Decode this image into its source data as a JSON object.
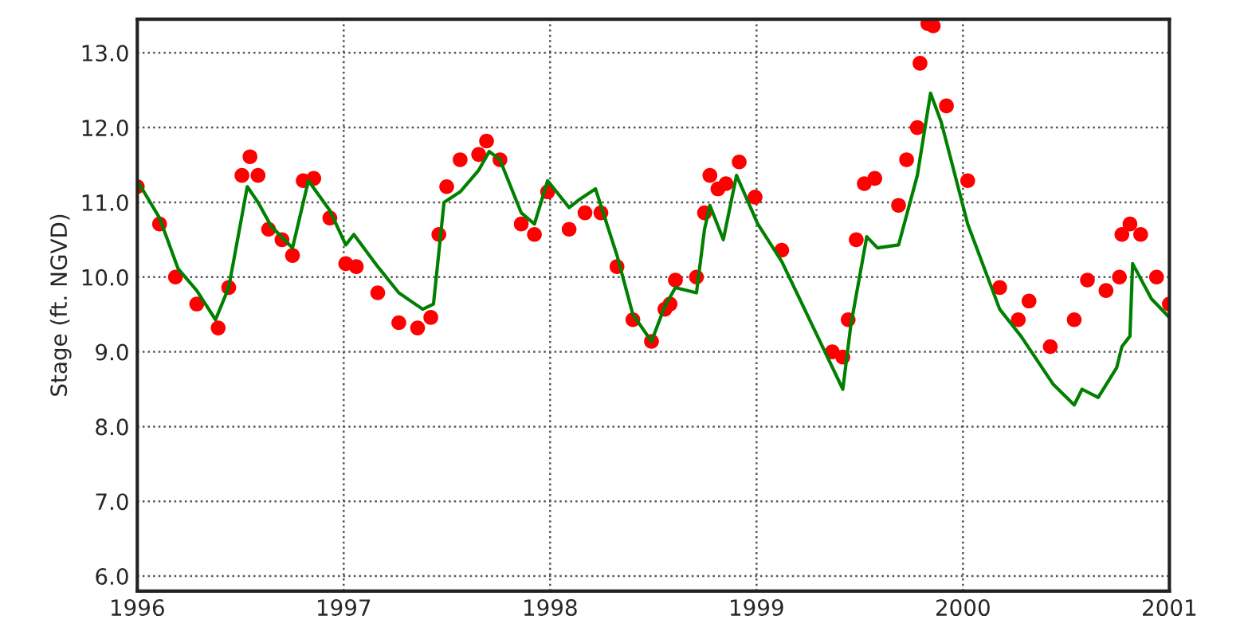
{
  "chart_data": {
    "type": "scatter",
    "ylabel": "Stage (ft. NGVD)",
    "xlim": [
      1996,
      2001
    ],
    "xticks": [
      1996,
      1997,
      1998,
      1999,
      2000,
      2001
    ],
    "ylim": [
      5.8,
      13.45
    ],
    "yticks": [
      {
        "value": 6,
        "label": "6.0"
      },
      {
        "value": 7,
        "label": "7.0"
      },
      {
        "value": 8,
        "label": "8.0"
      },
      {
        "value": 9,
        "label": "9.0"
      },
      {
        "value": 10,
        "label": "10.0"
      },
      {
        "value": 11,
        "label": "11.0"
      },
      {
        "value": 12,
        "label": "12.0"
      },
      {
        "value": 13,
        "label": "13.0"
      }
    ],
    "grid": true,
    "series": [
      {
        "marker": "circle",
        "color": "#ff0000",
        "x": [
          1996.0,
          1996.108,
          1996.185,
          1996.288,
          1996.392,
          1996.443,
          1996.507,
          1996.546,
          1996.585,
          1996.636,
          1996.701,
          1996.752,
          1996.804,
          1996.855,
          1996.933,
          1997.01,
          1997.061,
          1997.165,
          1997.267,
          1997.358,
          1997.422,
          1997.461,
          1997.499,
          1997.564,
          1997.654,
          1997.692,
          1997.757,
          1997.86,
          1997.924,
          1997.988,
          1998.092,
          1998.169,
          1998.246,
          1998.324,
          1998.401,
          1998.491,
          1998.556,
          1998.581,
          1998.607,
          1998.709,
          1998.748,
          1998.774,
          1998.813,
          1998.852,
          1998.916,
          1998.993,
          1999.122,
          1999.367,
          1999.418,
          1999.444,
          1999.483,
          1999.522,
          1999.573,
          1999.688,
          1999.727,
          1999.779,
          1999.792,
          1999.83,
          1999.856,
          1999.92,
          2000.023,
          2000.178,
          2000.268,
          2000.32,
          2000.423,
          2000.539,
          2000.603,
          2000.693,
          2000.758,
          2000.77,
          2000.809,
          2000.861,
          2000.938,
          2001.0
        ],
        "values": [
          11.21,
          10.71,
          10.0,
          9.64,
          9.32,
          9.86,
          11.36,
          11.61,
          11.36,
          10.64,
          10.5,
          10.29,
          11.29,
          11.32,
          10.79,
          10.18,
          10.14,
          9.79,
          9.39,
          9.32,
          9.46,
          10.57,
          11.21,
          11.57,
          11.64,
          11.82,
          11.57,
          10.71,
          10.57,
          11.14,
          10.64,
          10.86,
          10.86,
          10.14,
          9.43,
          9.14,
          9.57,
          9.64,
          9.96,
          10.0,
          10.86,
          11.36,
          11.18,
          11.25,
          11.54,
          11.07,
          10.36,
          9.0,
          8.93,
          9.43,
          10.5,
          11.25,
          11.32,
          10.96,
          11.57,
          12.0,
          12.86,
          13.39,
          13.36,
          12.29,
          11.29,
          9.86,
          9.43,
          9.68,
          9.07,
          9.43,
          9.96,
          9.82,
          10.0,
          10.57,
          10.71,
          10.57,
          10.0,
          9.64
        ]
      },
      {
        "type": "line",
        "line_style": "solid",
        "color": "#008000",
        "x": [
          1996.0,
          1996.108,
          1996.198,
          1996.288,
          1996.379,
          1996.443,
          1996.533,
          1996.585,
          1996.649,
          1996.752,
          1996.829,
          1996.933,
          1997.01,
          1997.049,
          1997.165,
          1997.267,
          1997.383,
          1997.435,
          1997.486,
          1997.564,
          1997.654,
          1997.705,
          1997.757,
          1997.86,
          1997.924,
          1997.988,
          1998.092,
          1998.143,
          1998.22,
          1998.324,
          1998.401,
          1998.491,
          1998.556,
          1998.607,
          1998.709,
          1998.748,
          1998.774,
          1998.839,
          1998.903,
          1999.006,
          1999.122,
          1999.418,
          1999.457,
          1999.534,
          1999.586,
          1999.688,
          1999.779,
          1999.843,
          1999.895,
          2000.023,
          2000.178,
          2000.281,
          2000.436,
          2000.539,
          2000.577,
          2000.655,
          2000.745,
          2000.77,
          2000.809,
          2000.822,
          2000.913,
          2001.0
        ],
        "values": [
          11.29,
          10.79,
          10.11,
          9.82,
          9.43,
          9.86,
          11.21,
          11.0,
          10.68,
          10.39,
          11.29,
          10.89,
          10.43,
          10.57,
          10.14,
          9.79,
          9.57,
          9.64,
          11.0,
          11.14,
          11.43,
          11.68,
          11.57,
          10.86,
          10.71,
          11.29,
          10.93,
          11.04,
          11.18,
          10.29,
          9.5,
          9.14,
          9.61,
          9.86,
          9.79,
          10.64,
          10.96,
          10.5,
          11.36,
          10.71,
          10.21,
          8.5,
          9.36,
          10.54,
          10.39,
          10.43,
          11.36,
          12.46,
          12.07,
          10.71,
          9.57,
          9.21,
          8.57,
          8.29,
          8.5,
          8.39,
          8.79,
          9.07,
          9.21,
          10.18,
          9.71,
          9.46
        ]
      }
    ]
  }
}
